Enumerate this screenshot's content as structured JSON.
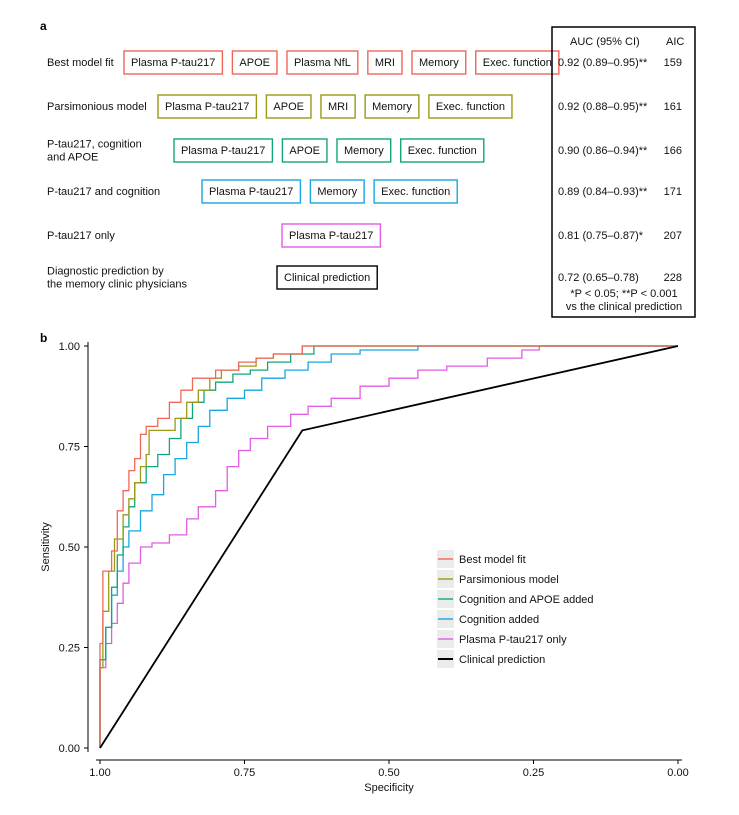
{
  "panel_a": {
    "label": "a",
    "table_header": {
      "auc": "AUC (95% CI)",
      "aic": "AIC"
    },
    "footnote_line1": "*P < 0.05; **P < 0.001",
    "footnote_line2": "vs the clinical prediction",
    "models": [
      {
        "name_lines": [
          "Best model fit"
        ],
        "color": "#f0675a",
        "features": [
          "Plasma P-tau217",
          "APOE",
          "Plasma NfL",
          "MRI",
          "Memory",
          "Exec. function"
        ],
        "auc": "0.92 (0.89–0.95)**",
        "aic": "159"
      },
      {
        "name_lines": [
          "Parsimonious model"
        ],
        "color": "#9a9a14",
        "features": [
          "Plasma P-tau217",
          "APOE",
          "MRI",
          "Memory",
          "Exec. function"
        ],
        "auc": "0.92 (0.88–0.95)**",
        "aic": "161"
      },
      {
        "name_lines": [
          "P-tau217, cognition",
          "and APOE"
        ],
        "color": "#12a67a",
        "features": [
          "Plasma P-tau217",
          "APOE",
          "Memory",
          "Exec. function"
        ],
        "auc": "0.90 (0.86–0.94)**",
        "aic": "166"
      },
      {
        "name_lines": [
          "P-tau217 and cognition"
        ],
        "color": "#1aa6e0",
        "features": [
          "Plasma P-tau217",
          "Memory",
          "Exec. function"
        ],
        "auc": "0.89 (0.84–0.93)**",
        "aic": "171"
      },
      {
        "name_lines": [
          "P-tau217 only"
        ],
        "color": "#e25ce6",
        "features": [
          "Plasma P-tau217"
        ],
        "auc": "0.81 (0.75–0.87)*",
        "aic": "207"
      },
      {
        "name_lines": [
          "Diagnostic prediction by",
          "the memory clinic physicians"
        ],
        "color": "#000000",
        "features": [
          "Clinical prediction"
        ],
        "auc": "0.72 (0.65–0.78)",
        "aic": "228"
      }
    ]
  },
  "chart_data": {
    "type": "line",
    "panel_label": "b",
    "xlabel": "Specificity",
    "ylabel": "Sensitivity",
    "xlim": [
      1.0,
      0.0
    ],
    "ylim": [
      0.0,
      1.0
    ],
    "x_ticks": [
      "1.00",
      "0.75",
      "0.50",
      "0.25",
      "0.00"
    ],
    "y_ticks": [
      "0.00",
      "0.25",
      "0.50",
      "0.75",
      "1.00"
    ],
    "legend_position": "bottom-right",
    "grid": false,
    "series": [
      {
        "name": "Best model fit",
        "color": "#f0675a",
        "points": [
          [
            1,
            0
          ],
          [
            1,
            0.1
          ],
          [
            0.995,
            0.26
          ],
          [
            0.98,
            0.44
          ],
          [
            0.97,
            0.49
          ],
          [
            0.96,
            0.59
          ],
          [
            0.95,
            0.64
          ],
          [
            0.94,
            0.69
          ],
          [
            0.93,
            0.72
          ],
          [
            0.92,
            0.78
          ],
          [
            0.9,
            0.8
          ],
          [
            0.88,
            0.82
          ],
          [
            0.86,
            0.86
          ],
          [
            0.84,
            0.89
          ],
          [
            0.82,
            0.92
          ],
          [
            0.8,
            0.92
          ],
          [
            0.78,
            0.94
          ],
          [
            0.76,
            0.94
          ],
          [
            0.73,
            0.96
          ],
          [
            0.7,
            0.97
          ],
          [
            0.65,
            0.98
          ],
          [
            0.6,
            1.0
          ],
          [
            0.5,
            1.0
          ],
          [
            0,
            1.0
          ]
        ]
      },
      {
        "name": "Parsimonious model",
        "color": "#9a9a14",
        "points": [
          [
            1,
            0
          ],
          [
            1,
            0.1
          ],
          [
            0.995,
            0.2
          ],
          [
            0.985,
            0.34
          ],
          [
            0.975,
            0.44
          ],
          [
            0.96,
            0.52
          ],
          [
            0.95,
            0.58
          ],
          [
            0.94,
            0.62
          ],
          [
            0.93,
            0.66
          ],
          [
            0.92,
            0.7
          ],
          [
            0.915,
            0.73
          ],
          [
            0.91,
            0.79
          ],
          [
            0.89,
            0.79
          ],
          [
            0.87,
            0.79
          ],
          [
            0.85,
            0.82
          ],
          [
            0.83,
            0.86
          ],
          [
            0.81,
            0.89
          ],
          [
            0.79,
            0.92
          ],
          [
            0.76,
            0.94
          ],
          [
            0.73,
            0.95
          ],
          [
            0.7,
            0.97
          ],
          [
            0.65,
            0.98
          ],
          [
            0.6,
            1.0
          ],
          [
            0.5,
            1.0
          ],
          [
            0,
            1.0
          ]
        ]
      },
      {
        "name": "Cognition and APOE added",
        "color": "#12a67a",
        "points": [
          [
            1,
            0
          ],
          [
            1,
            0.16
          ],
          [
            0.99,
            0.22
          ],
          [
            0.98,
            0.3
          ],
          [
            0.97,
            0.4
          ],
          [
            0.96,
            0.48
          ],
          [
            0.95,
            0.55
          ],
          [
            0.94,
            0.6
          ],
          [
            0.92,
            0.66
          ],
          [
            0.9,
            0.7
          ],
          [
            0.88,
            0.73
          ],
          [
            0.86,
            0.77
          ],
          [
            0.84,
            0.82
          ],
          [
            0.82,
            0.86
          ],
          [
            0.8,
            0.89
          ],
          [
            0.77,
            0.91
          ],
          [
            0.74,
            0.93
          ],
          [
            0.71,
            0.94
          ],
          [
            0.67,
            0.96
          ],
          [
            0.63,
            0.98
          ],
          [
            0.58,
            1.0
          ],
          [
            0.5,
            1.0
          ],
          [
            0,
            1.0
          ]
        ]
      },
      {
        "name": "Cognition added",
        "color": "#1aa6e0",
        "points": [
          [
            1,
            0
          ],
          [
            1,
            0.14
          ],
          [
            0.99,
            0.22
          ],
          [
            0.98,
            0.3
          ],
          [
            0.97,
            0.38
          ],
          [
            0.96,
            0.44
          ],
          [
            0.95,
            0.5
          ],
          [
            0.93,
            0.54
          ],
          [
            0.91,
            0.59
          ],
          [
            0.89,
            0.63
          ],
          [
            0.87,
            0.68
          ],
          [
            0.85,
            0.72
          ],
          [
            0.83,
            0.76
          ],
          [
            0.81,
            0.8
          ],
          [
            0.78,
            0.84
          ],
          [
            0.75,
            0.87
          ],
          [
            0.72,
            0.89
          ],
          [
            0.68,
            0.92
          ],
          [
            0.64,
            0.94
          ],
          [
            0.6,
            0.96
          ],
          [
            0.55,
            0.98
          ],
          [
            0.45,
            0.99
          ],
          [
            0.43,
            1.0
          ],
          [
            0,
            1.0
          ]
        ]
      },
      {
        "name": "Plasma P-tau217 only",
        "color": "#e25ce6",
        "points": [
          [
            1,
            0
          ],
          [
            1,
            0.1
          ],
          [
            0.99,
            0.2
          ],
          [
            0.98,
            0.26
          ],
          [
            0.97,
            0.31
          ],
          [
            0.96,
            0.36
          ],
          [
            0.95,
            0.41
          ],
          [
            0.93,
            0.46
          ],
          [
            0.91,
            0.5
          ],
          [
            0.88,
            0.51
          ],
          [
            0.85,
            0.53
          ],
          [
            0.83,
            0.57
          ],
          [
            0.8,
            0.6
          ],
          [
            0.78,
            0.64
          ],
          [
            0.76,
            0.7
          ],
          [
            0.74,
            0.74
          ],
          [
            0.71,
            0.77
          ],
          [
            0.67,
            0.8
          ],
          [
            0.64,
            0.83
          ],
          [
            0.6,
            0.85
          ],
          [
            0.55,
            0.87
          ],
          [
            0.5,
            0.9
          ],
          [
            0.45,
            0.92
          ],
          [
            0.4,
            0.94
          ],
          [
            0.33,
            0.95
          ],
          [
            0.27,
            0.97
          ],
          [
            0.24,
            0.99
          ],
          [
            0.2,
            1.0
          ],
          [
            0,
            1.0
          ]
        ]
      },
      {
        "name": "Clinical prediction",
        "color": "#000000",
        "points": [
          [
            1,
            0
          ],
          [
            0.65,
            0.79
          ],
          [
            0,
            1.0
          ]
        ]
      }
    ]
  }
}
